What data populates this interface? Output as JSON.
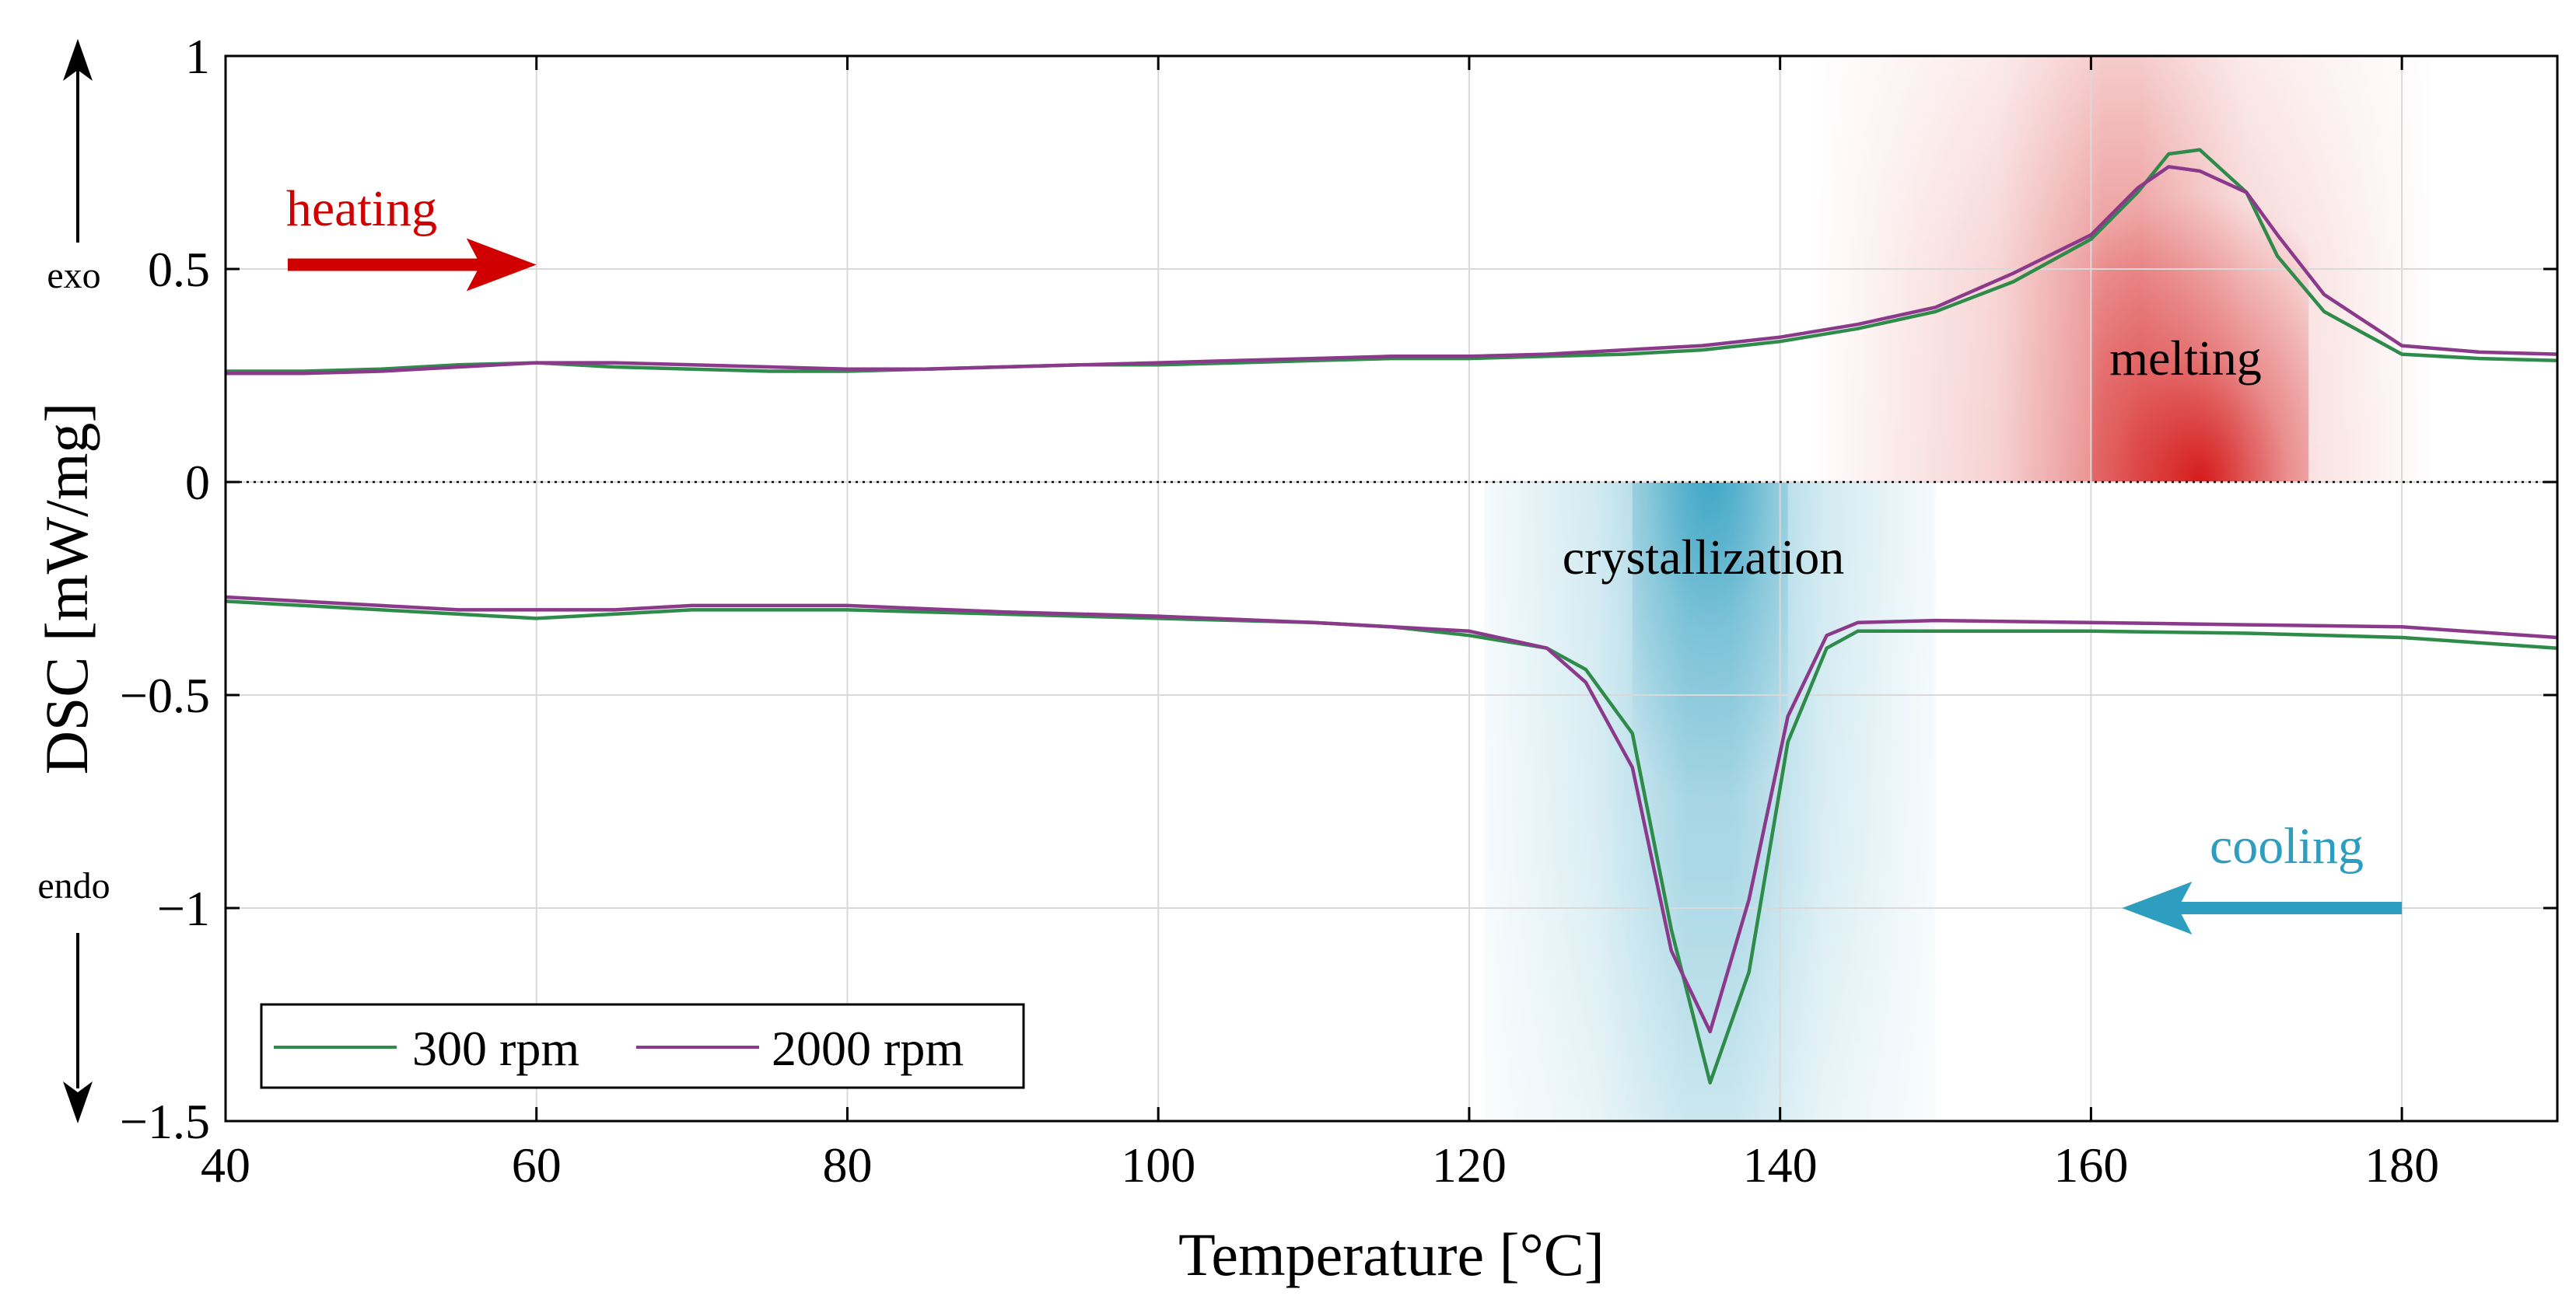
{
  "chart_data": {
    "type": "line",
    "xlabel": "Temperature [°C]",
    "ylabel": "DSC [mW/mg]",
    "xlim": [
      40,
      190
    ],
    "ylim": [
      -1.5,
      1
    ],
    "xticks": [
      40,
      60,
      80,
      100,
      120,
      140,
      160,
      180
    ],
    "yticks": [
      -1.5,
      -1,
      -0.5,
      0,
      0.5,
      1
    ],
    "xtick_labels": [
      "40",
      "60",
      "80",
      "100",
      "120",
      "140",
      "160",
      "180"
    ],
    "ytick_labels": [
      "−1.5",
      "−1",
      "−0.5",
      "0",
      "0.5",
      "1"
    ],
    "grid": true,
    "zero_line": "dotted",
    "legend": {
      "placement": "bottom-left",
      "entries": [
        "300 rpm",
        "2000 rpm"
      ]
    },
    "annotations": {
      "exo": "exo",
      "endo": "endo",
      "heating": "heating",
      "cooling": "cooling",
      "melting": "melting",
      "crystallization": "crystallization"
    },
    "arrows": {
      "heating": {
        "from": [
          44,
          0.51
        ],
        "to": [
          60,
          0.51
        ],
        "color": "#d00000"
      },
      "cooling": {
        "from": [
          180,
          -1.0
        ],
        "to": [
          162,
          -1.0
        ],
        "color": "#2e9ec0"
      }
    },
    "regions": [
      {
        "name": "melting",
        "x_range": [
          142,
          182
        ],
        "center": 167,
        "y_range": [
          0,
          1
        ],
        "color": "#d00000"
      },
      {
        "name": "crystallization",
        "x_range": [
          121,
          150
        ],
        "center": 135.5,
        "y_range": [
          -1.5,
          0
        ],
        "color": "#2e9ec0"
      }
    ],
    "series": [
      {
        "name": "300 rpm",
        "color": "#2e8b4a",
        "segments": [
          {
            "label": "heating",
            "x": [
              40,
              45,
              50,
              55,
              60,
              65,
              70,
              75,
              80,
              85,
              90,
              95,
              100,
              105,
              110,
              115,
              120,
              125,
              130,
              135,
              140,
              145,
              150,
              155,
              160,
              163,
              165,
              167,
              170,
              172,
              175,
              180,
              185,
              190
            ],
            "y": [
              0.26,
              0.26,
              0.265,
              0.275,
              0.28,
              0.27,
              0.265,
              0.26,
              0.26,
              0.265,
              0.27,
              0.275,
              0.275,
              0.28,
              0.285,
              0.29,
              0.29,
              0.295,
              0.3,
              0.31,
              0.33,
              0.36,
              0.4,
              0.47,
              0.57,
              0.68,
              0.77,
              0.78,
              0.68,
              0.53,
              0.4,
              0.3,
              0.29,
              0.285
            ]
          },
          {
            "label": "cooling",
            "x": [
              40,
              50,
              55,
              60,
              65,
              70,
              75,
              80,
              90,
              100,
              110,
              115,
              120,
              125,
              127.5,
              130.5,
              133,
              135.5,
              138,
              140.5,
              143,
              145,
              150,
              160,
              170,
              180,
              190
            ],
            "y": [
              -0.28,
              -0.3,
              -0.31,
              -0.32,
              -0.31,
              -0.3,
              -0.3,
              -0.3,
              -0.31,
              -0.32,
              -0.33,
              -0.34,
              -0.36,
              -0.39,
              -0.44,
              -0.59,
              -1.05,
              -1.41,
              -1.15,
              -0.61,
              -0.39,
              -0.35,
              -0.35,
              -0.35,
              -0.355,
              -0.365,
              -0.39
            ]
          }
        ]
      },
      {
        "name": "2000 rpm",
        "color": "#8b3a8b",
        "segments": [
          {
            "label": "heating",
            "x": [
              40,
              45,
              50,
              55,
              60,
              65,
              70,
              75,
              80,
              85,
              90,
              95,
              100,
              105,
              110,
              115,
              120,
              125,
              130,
              135,
              140,
              145,
              150,
              155,
              160,
              163,
              165,
              167,
              170,
              172,
              175,
              180,
              185,
              190
            ],
            "y": [
              0.255,
              0.255,
              0.26,
              0.27,
              0.28,
              0.28,
              0.275,
              0.27,
              0.265,
              0.265,
              0.27,
              0.275,
              0.28,
              0.285,
              0.29,
              0.295,
              0.295,
              0.3,
              0.31,
              0.32,
              0.34,
              0.37,
              0.41,
              0.49,
              0.58,
              0.69,
              0.74,
              0.73,
              0.68,
              0.58,
              0.44,
              0.32,
              0.305,
              0.3
            ]
          },
          {
            "label": "cooling",
            "x": [
              40,
              50,
              55,
              60,
              65,
              70,
              75,
              80,
              90,
              100,
              110,
              115,
              120,
              125,
              127.5,
              130.5,
              133,
              135.5,
              138,
              140.5,
              143,
              145,
              150,
              160,
              170,
              180,
              190
            ],
            "y": [
              -0.27,
              -0.29,
              -0.3,
              -0.3,
              -0.3,
              -0.29,
              -0.29,
              -0.29,
              -0.305,
              -0.315,
              -0.33,
              -0.34,
              -0.35,
              -0.39,
              -0.47,
              -0.67,
              -1.1,
              -1.29,
              -0.98,
              -0.55,
              -0.36,
              -0.33,
              -0.325,
              -0.33,
              -0.335,
              -0.34,
              -0.365
            ]
          }
        ]
      }
    ]
  }
}
